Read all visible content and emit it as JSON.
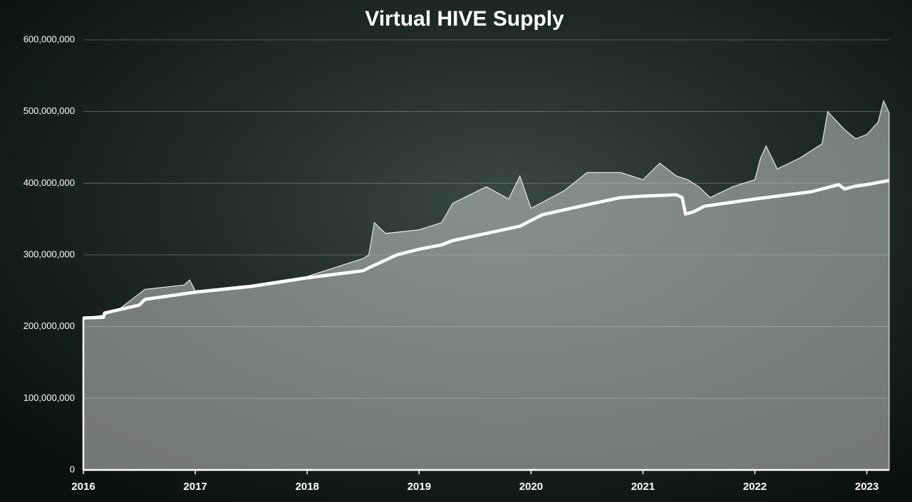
{
  "chart_data": {
    "type": "area-line",
    "title": "Virtual HIVE Supply",
    "xlim": [
      2016,
      2023.2
    ],
    "xticks": [
      2016,
      2017,
      2018,
      2019,
      2020,
      2021,
      2022,
      2023
    ],
    "ylim": [
      0,
      600000000
    ],
    "yticks": [
      0,
      {
        "value": 100000000,
        "label": "100,000,000"
      },
      {
        "value": 200000000,
        "label": "200,000,000"
      },
      {
        "value": 300000000,
        "label": "300,000,000"
      },
      {
        "value": 400000000,
        "label": "400,000,000"
      },
      {
        "value": 500000000,
        "label": "500,000,000"
      },
      {
        "value": 600000000,
        "label": "600,000,000"
      }
    ],
    "grid": true,
    "series": [
      {
        "kind": "area",
        "color": "#c8cbc9",
        "x": [
          2016,
          2016.18,
          2016.3,
          2016.5,
          2016.55,
          2016.9,
          2016.95,
          2017,
          2017.5,
          2018,
          2018.3,
          2018.5,
          2018.55,
          2018.6,
          2018.7,
          2019,
          2019.2,
          2019.3,
          2019.6,
          2019.8,
          2019.9,
          2020,
          2020.3,
          2020.5,
          2020.8,
          2021,
          2021.15,
          2021.3,
          2021.4,
          2021.5,
          2021.6,
          2021.8,
          2022,
          2022.05,
          2022.1,
          2022.2,
          2022.4,
          2022.6,
          2022.65,
          2022.8,
          2022.9,
          2023,
          2023.1,
          2023.15,
          2023.2
        ],
        "values": [
          212000000,
          216000000,
          222000000,
          246000000,
          252000000,
          258000000,
          265000000,
          250000000,
          258000000,
          270000000,
          285000000,
          295000000,
          300000000,
          345000000,
          330000000,
          335000000,
          345000000,
          372000000,
          395000000,
          378000000,
          410000000,
          365000000,
          390000000,
          415000000,
          415000000,
          405000000,
          428000000,
          410000000,
          405000000,
          395000000,
          380000000,
          395000000,
          405000000,
          435000000,
          452000000,
          420000000,
          435000000,
          455000000,
          500000000,
          475000000,
          462000000,
          468000000,
          485000000,
          515000000,
          498000000
        ]
      },
      {
        "kind": "line",
        "color": "#ffffff",
        "x": [
          2016,
          2016.18,
          2016.19,
          2016.5,
          2016.55,
          2017,
          2017.5,
          2018,
          2018.5,
          2018.55,
          2018.8,
          2019,
          2019.2,
          2019.3,
          2019.6,
          2019.9,
          2020,
          2020.1,
          2020.5,
          2020.8,
          2021,
          2021.3,
          2021.35,
          2021.38,
          2021.45,
          2021.55,
          2022,
          2022.5,
          2022.75,
          2022.8,
          2022.9,
          2023,
          2023.2
        ],
        "values": [
          212000000,
          213000000,
          219000000,
          230000000,
          238000000,
          248000000,
          256000000,
          268000000,
          278000000,
          282000000,
          300000000,
          308000000,
          314000000,
          320000000,
          330000000,
          340000000,
          348000000,
          356000000,
          370000000,
          380000000,
          382000000,
          384000000,
          380000000,
          357000000,
          360000000,
          368000000,
          378000000,
          388000000,
          398000000,
          392000000,
          396000000,
          398000000,
          404000000
        ]
      }
    ]
  }
}
